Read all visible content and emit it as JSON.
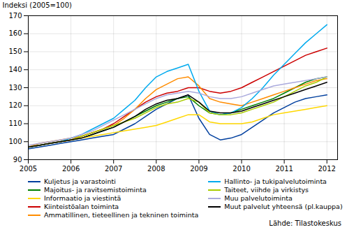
{
  "chart_data": {
    "type": "line",
    "ylabel": "Indeksi (2005=100)",
    "caption": "Lähde: Tilastokeskus",
    "xlim": [
      2005.0,
      2012.25
    ],
    "xticks": [
      2005,
      2006,
      2007,
      2008,
      2009,
      2010,
      2011,
      2012
    ],
    "ylim": [
      90,
      170
    ],
    "yticks": [
      90,
      100,
      110,
      120,
      130,
      140,
      150,
      160,
      170
    ],
    "grid": true,
    "x": [
      2005.0,
      2005.25,
      2005.5,
      2005.75,
      2006.0,
      2006.25,
      2006.5,
      2006.75,
      2007.0,
      2007.25,
      2007.5,
      2007.75,
      2008.0,
      2008.25,
      2008.5,
      2008.75,
      2009.0,
      2009.25,
      2009.5,
      2009.75,
      2010.0,
      2010.25,
      2010.5,
      2010.75,
      2011.0,
      2011.25,
      2011.5,
      2011.75,
      2012.0
    ],
    "series": [
      {
        "name": "Kuljetus ja varastointi",
        "color": "#003f9e",
        "values": [
          96,
          97,
          98,
          99,
          100,
          101,
          102,
          103,
          104,
          107,
          110,
          114,
          118,
          121,
          124,
          126,
          113,
          104,
          101,
          102,
          104,
          108,
          112,
          116,
          119,
          122,
          124,
          125,
          126
        ]
      },
      {
        "name": "Majoitus- ja ravitsemistoiminta",
        "color": "#008000",
        "values": [
          97,
          98,
          99,
          100,
          101,
          102,
          104,
          106,
          108,
          111,
          114,
          117,
          120,
          122,
          124,
          125,
          120,
          116,
          115,
          116,
          118,
          120,
          122,
          124,
          127,
          130,
          133,
          135,
          136
        ]
      },
      {
        "name": "Informaatio ja viestintä",
        "color": "#ffd700",
        "values": [
          97,
          98,
          99,
          100,
          101,
          102,
          103,
          104,
          105,
          106,
          107,
          108,
          109,
          111,
          113,
          115,
          115,
          111,
          110,
          110,
          110,
          111,
          113,
          115,
          116,
          117,
          118,
          119,
          120
        ]
      },
      {
        "name": "Kiinteistöalan toiminta",
        "color": "#cc0000",
        "values": [
          97,
          98,
          99,
          100,
          101,
          103,
          105,
          107,
          110,
          114,
          118,
          122,
          125,
          127,
          128,
          130,
          130,
          128,
          127,
          128,
          130,
          133,
          136,
          139,
          142,
          145,
          148,
          150,
          152
        ]
      },
      {
        "name": "Ammatillinen, tieteellinen ja tekninen toiminta",
        "color": "#ff8c00",
        "values": [
          97,
          99,
          100,
          101,
          102,
          103,
          105,
          107,
          109,
          113,
          118,
          124,
          129,
          132,
          135,
          136,
          131,
          124,
          122,
          121,
          120,
          122,
          124,
          126,
          128,
          130,
          132,
          134,
          135
        ]
      },
      {
        "name": "Hallinto- ja tukipalvelutoiminta",
        "color": "#00aaee",
        "values": [
          97,
          98,
          99,
          100,
          102,
          104,
          107,
          110,
          113,
          118,
          123,
          130,
          136,
          139,
          141,
          143,
          128,
          117,
          115,
          116,
          119,
          124,
          130,
          137,
          143,
          149,
          155,
          160,
          165
        ]
      },
      {
        "name": "Taiteet, viihde ja virkistys",
        "color": "#aacc00",
        "values": [
          97,
          98,
          99,
          100,
          101,
          103,
          105,
          107,
          109,
          111,
          113,
          116,
          119,
          121,
          122,
          124,
          122,
          116,
          115,
          115,
          116,
          118,
          120,
          122,
          125,
          128,
          131,
          133,
          136
        ]
      },
      {
        "name": "Muu palvelutoiminta",
        "color": "#aaaadd",
        "values": [
          98,
          99,
          100,
          101,
          102,
          104,
          106,
          109,
          112,
          115,
          118,
          121,
          124,
          126,
          127,
          128,
          127,
          125,
          124,
          124,
          125,
          127,
          129,
          131,
          132,
          133,
          134,
          135,
          136
        ]
      },
      {
        "name": "Muut palvelut yhteensä (pl.kauppa)",
        "color": "#000000",
        "values": [
          97,
          98,
          99,
          100,
          101,
          102,
          104,
          106,
          108,
          111,
          114,
          118,
          121,
          123,
          124,
          126,
          122,
          117,
          116,
          116,
          117,
          119,
          121,
          123,
          125,
          127,
          129,
          131,
          133
        ]
      }
    ]
  }
}
